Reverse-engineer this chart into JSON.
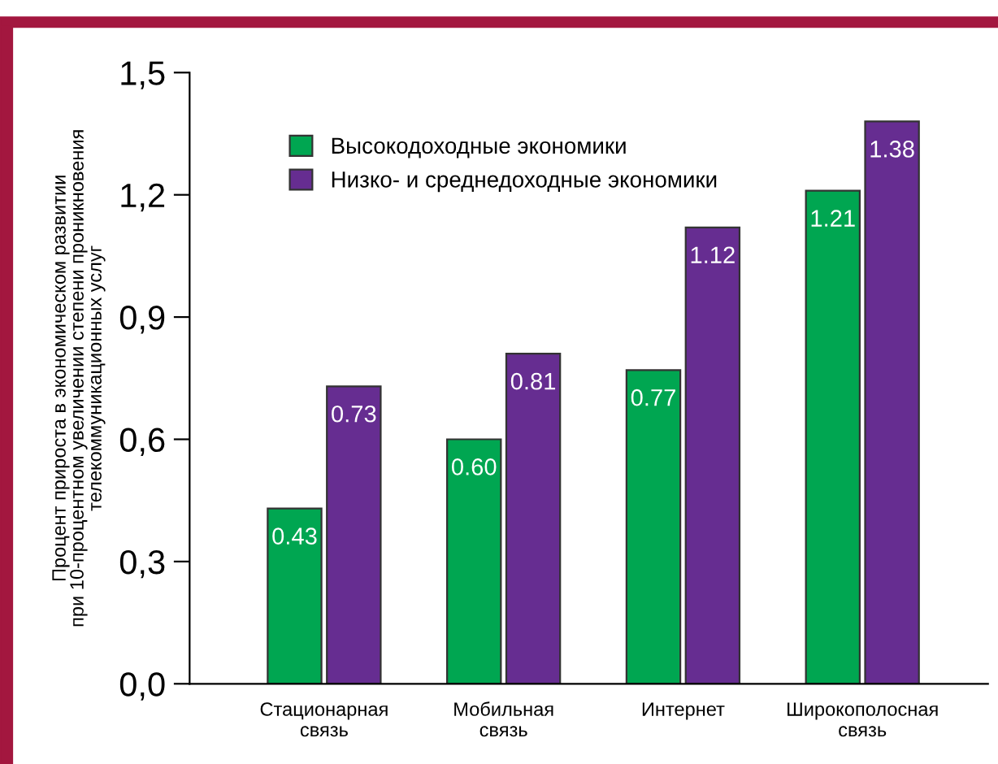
{
  "chart_data": {
    "type": "bar",
    "ylabel": "Процент прироста в экономическом развитии\nпри 10-процентном увеличении степени проникновения\nтелекоммуникационных услуг",
    "categories": [
      "Стационарная\nсвязь",
      "Мобильная\nсвязь",
      "Интернет",
      "Широкополосная\nсвязь"
    ],
    "series": [
      {
        "name": "Высокодоходные экономики",
        "color": "#00a651",
        "values": [
          0.43,
          0.6,
          0.77,
          1.21
        ],
        "value_labels": [
          "0.43",
          "0.60",
          "0.77",
          "1.21"
        ]
      },
      {
        "name": "Низко- и среднедоходные экономики",
        "color": "#662d91",
        "values": [
          0.73,
          0.81,
          1.12,
          1.38
        ],
        "value_labels": [
          "0.73",
          "0.81",
          "1.12",
          "1.38"
        ]
      }
    ],
    "ylim": [
      0,
      1.5
    ],
    "yticks": [
      {
        "value": 0,
        "label": "0,0"
      },
      {
        "value": 0.3,
        "label": "0,3"
      },
      {
        "value": 0.6,
        "label": "0,6"
      },
      {
        "value": 0.9,
        "label": "0,9"
      },
      {
        "value": 1.2,
        "label": "1,2"
      },
      {
        "value": 1.5,
        "label": "1,5"
      }
    ],
    "grid": false,
    "legend": "top left"
  }
}
